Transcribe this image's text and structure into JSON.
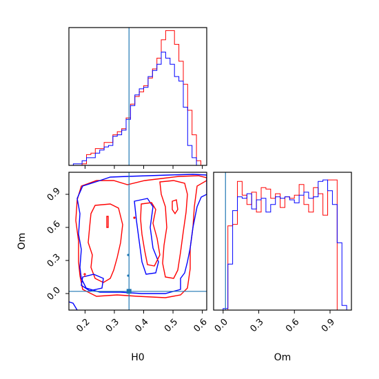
{
  "chart_data": {
    "type": "corner",
    "parameters": [
      "H0",
      "Om"
    ],
    "truths": {
      "H0": 0.35,
      "Om": 0.02
    },
    "colors": {
      "red": "#ff0000",
      "blue": "#0000ff",
      "truth": "#1f77b4"
    },
    "panels": [
      {
        "id": "hist_h0",
        "type": "histogram",
        "parameter": "H0",
        "xlim": [
          0.145,
          0.615
        ],
        "bin_edges": [
          0.16,
          0.175,
          0.19,
          0.205,
          0.22,
          0.235,
          0.25,
          0.265,
          0.28,
          0.295,
          0.31,
          0.325,
          0.34,
          0.355,
          0.37,
          0.385,
          0.4,
          0.415,
          0.43,
          0.445,
          0.46,
          0.475,
          0.49,
          0.505,
          0.52,
          0.535,
          0.55,
          0.565,
          0.58,
          0.595
        ],
        "series": [
          {
            "name": "red",
            "values": [
              0,
              0,
              0.01,
              0.07,
              0.08,
              0.11,
              0.11,
              0.15,
              0.15,
              0.2,
              0.22,
              0.24,
              0.31,
              0.4,
              0.45,
              0.48,
              0.52,
              0.57,
              0.63,
              0.7,
              0.82,
              0.88,
              0.88,
              0.79,
              0.68,
              0.53,
              0.36,
              0.2,
              0.03
            ]
          },
          {
            "name": "blue",
            "values": [
              0.01,
              0.01,
              0.03,
              0.05,
              0.05,
              0.08,
              0.1,
              0.12,
              0.13,
              0.19,
              0.2,
              0.23,
              0.3,
              0.39,
              0.46,
              0.5,
              0.51,
              0.58,
              0.62,
              0.66,
              0.74,
              0.7,
              0.66,
              0.58,
              0.55,
              0.38,
              0.13,
              0.05,
              0.0
            ]
          }
        ]
      },
      {
        "id": "hist_om",
        "type": "histogram",
        "parameter": "Om",
        "xlim": [
          -0.08,
          1.08
        ],
        "bin_edges": [
          -0.04,
          0.0,
          0.04,
          0.08,
          0.12,
          0.16,
          0.2,
          0.24,
          0.28,
          0.32,
          0.36,
          0.4,
          0.44,
          0.48,
          0.52,
          0.56,
          0.6,
          0.64,
          0.68,
          0.72,
          0.76,
          0.8,
          0.84,
          0.88,
          0.92,
          0.96,
          1.0,
          1.04
        ],
        "series": [
          {
            "name": "red",
            "values": [
              0,
              0,
              0.55,
              0.56,
              0.84,
              0.75,
              0.69,
              0.77,
              0.64,
              0.8,
              0.79,
              0.73,
              0.76,
              0.67,
              0.74,
              0.73,
              0.75,
              0.82,
              0.69,
              0.64,
              0.8,
              0.76,
              0.62,
              0.85,
              0.85,
              0,
              0
            ]
          },
          {
            "name": "blue",
            "values": [
              0,
              0.01,
              0.3,
              0.65,
              0.74,
              0.73,
              0.76,
              0.66,
              0.72,
              0.73,
              0.64,
              0.69,
              0.74,
              0.73,
              0.74,
              0.72,
              0.7,
              0.75,
              0.77,
              0.73,
              0.74,
              0.84,
              0.85,
              0.78,
              0.69,
              0.44,
              0.03
            ]
          }
        ]
      },
      {
        "id": "contour_om_h0",
        "type": "contour",
        "x_parameter": "H0",
        "y_parameter": "Om",
        "xlim": [
          0.145,
          0.615
        ],
        "ylim": [
          -0.15,
          1.1
        ],
        "point": {
          "H0": 0.35,
          "Om": 0.02
        }
      }
    ],
    "axes": {
      "h0_ticks": [
        "0.2",
        "0.3",
        "0.4",
        "0.5",
        "0.6"
      ],
      "h0_tick_values": [
        0.2,
        0.3,
        0.4,
        0.5,
        0.6
      ],
      "om_ticks": [
        "0.0",
        "0.3",
        "0.6",
        "0.9"
      ],
      "om_tick_values": [
        0.0,
        0.3,
        0.6,
        0.9
      ],
      "xlabel_left": "H0",
      "xlabel_right": "Om",
      "ylabel": "Om"
    }
  }
}
